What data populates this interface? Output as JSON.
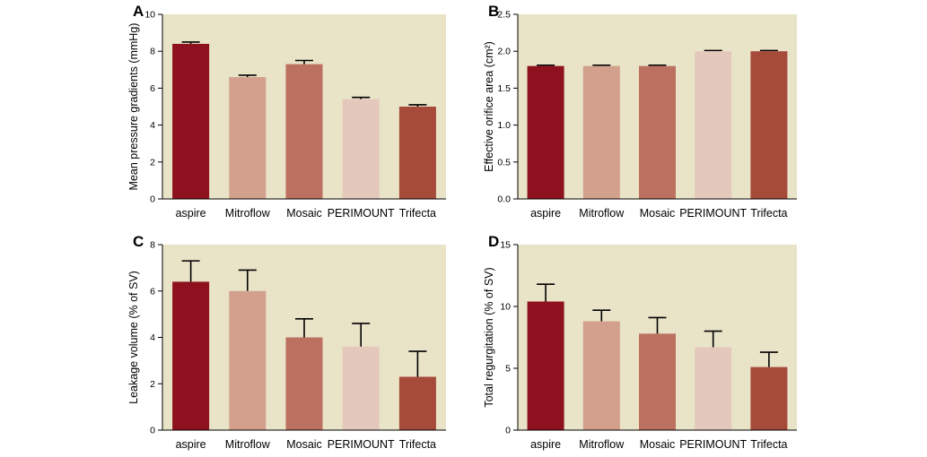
{
  "colors": {
    "plot_background": "#e9e3c7",
    "bars": [
      "#8e111f",
      "#d2a08c",
      "#bb7060",
      "#e5c8bc",
      "#a64a3a"
    ]
  },
  "chart_data": [
    {
      "type": "bar",
      "panel": "A",
      "categories": [
        "aspire",
        "Mitroflow",
        "Mosaic",
        "PERIMOUNT",
        "Trifecta"
      ],
      "values": [
        8.4,
        6.6,
        7.3,
        5.4,
        5.0
      ],
      "errors": [
        0.1,
        0.1,
        0.2,
        0.1,
        0.1
      ],
      "ylabel": "Mean pressure gradients (mmHg)",
      "ylim": [
        0,
        10
      ],
      "yticks": [
        "0",
        "2",
        "4",
        "6",
        "8",
        "10"
      ],
      "ytick_values": [
        0,
        2,
        4,
        6,
        8,
        10
      ],
      "grid": false
    },
    {
      "type": "bar",
      "panel": "B",
      "categories": [
        "aspire",
        "Mitroflow",
        "Mosaic",
        "PERIMOUNT",
        "Trifecta"
      ],
      "values": [
        1.8,
        1.8,
        1.8,
        2.0,
        2.0
      ],
      "errors": [
        0.01,
        0.01,
        0.01,
        0.01,
        0.01
      ],
      "ylabel": "Effective orifice area (cm²)",
      "ylim": [
        0,
        2.5
      ],
      "yticks": [
        "0.0",
        "0.5",
        "1.0",
        "1.5",
        "2.0",
        "2.5"
      ],
      "ytick_values": [
        0,
        0.5,
        1.0,
        1.5,
        2.0,
        2.5
      ],
      "grid": false
    },
    {
      "type": "bar",
      "panel": "C",
      "categories": [
        "aspire",
        "Mitroflow",
        "Mosaic",
        "PERIMOUNT",
        "Trifecta"
      ],
      "values": [
        6.4,
        6.0,
        4.0,
        3.6,
        2.3
      ],
      "errors": [
        0.9,
        0.9,
        0.8,
        1.0,
        1.1
      ],
      "ylabel": "Leakage volume (% of SV)",
      "ylim": [
        0,
        8
      ],
      "yticks": [
        "0",
        "2",
        "4",
        "6",
        "8"
      ],
      "ytick_values": [
        0,
        2,
        4,
        6,
        8
      ],
      "grid": false
    },
    {
      "type": "bar",
      "panel": "D",
      "categories": [
        "aspire",
        "Mitroflow",
        "Mosaic",
        "PERIMOUNT",
        "Trifecta"
      ],
      "values": [
        10.4,
        8.8,
        7.8,
        6.7,
        5.1
      ],
      "errors": [
        1.4,
        0.9,
        1.3,
        1.3,
        1.2
      ],
      "ylabel": "Total regurgitation (% of SV)",
      "ylim": [
        0,
        15
      ],
      "yticks": [
        "0",
        "5",
        "10",
        "15"
      ],
      "ytick_values": [
        0,
        5,
        10,
        15
      ],
      "grid": false
    }
  ]
}
